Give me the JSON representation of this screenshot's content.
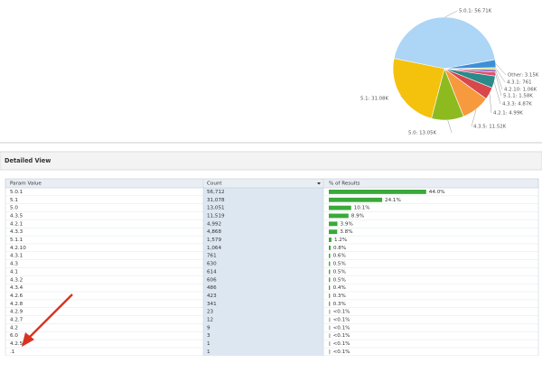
{
  "chart_data": {
    "type": "pie",
    "labels": [
      "5.0.1: 56.71K",
      "5.1: 31.08K",
      "5.0: 13.05K",
      "4.3.5: 11.52K",
      "4.2.1: 4.99K",
      "4.3.3: 4.87K",
      "5.1.1: 1.58K",
      "4.2.10: 1.06K",
      "4.3.1: 761",
      "Other: 3.15K"
    ],
    "values": [
      56712,
      31078,
      13051,
      11519,
      4992,
      4868,
      1579,
      1064,
      761,
      3149
    ],
    "colors": [
      "#acd5f6",
      "#f4c20d",
      "#8dbb1f",
      "#f79a3e",
      "#d8474b",
      "#2b8a8a",
      "#e4506f",
      "#8d6cbf",
      "#c5d46a",
      "#3d8fd8"
    ]
  },
  "section_title": "Detailed View",
  "table": {
    "columns": [
      "Param Value",
      "Count",
      "% of Results"
    ],
    "rows": [
      {
        "param": "5.0.1",
        "count": "56,712",
        "percent": {
          "value": 44.0,
          "label": "44.0%"
        }
      },
      {
        "param": "5.1",
        "count": "31,078",
        "percent": {
          "value": 24.1,
          "label": "24.1%"
        }
      },
      {
        "param": "5.0",
        "count": "13,051",
        "percent": {
          "value": 10.1,
          "label": "10.1%"
        }
      },
      {
        "param": "4.3.5",
        "count": "11,519",
        "percent": {
          "value": 8.9,
          "label": "8.9%"
        }
      },
      {
        "param": "4.2.1",
        "count": "4,992",
        "percent": {
          "value": 3.9,
          "label": "3.9%"
        }
      },
      {
        "param": "4.3.3",
        "count": "4,868",
        "percent": {
          "value": 3.8,
          "label": "3.8%"
        }
      },
      {
        "param": "5.1.1",
        "count": "1,579",
        "percent": {
          "value": 1.2,
          "label": "1.2%"
        }
      },
      {
        "param": "4.2.10",
        "count": "1,064",
        "percent": {
          "value": 0.8,
          "label": "0.8%"
        }
      },
      {
        "param": "4.3.1",
        "count": "761",
        "percent": {
          "value": 0.6,
          "label": "0.6%"
        }
      },
      {
        "param": "4.3",
        "count": "630",
        "percent": {
          "value": 0.5,
          "label": "0.5%"
        }
      },
      {
        "param": "4.1",
        "count": "614",
        "percent": {
          "value": 0.5,
          "label": "0.5%"
        }
      },
      {
        "param": "4.3.2",
        "count": "606",
        "percent": {
          "value": 0.5,
          "label": "0.5%"
        }
      },
      {
        "param": "4.3.4",
        "count": "486",
        "percent": {
          "value": 0.4,
          "label": "0.4%"
        }
      },
      {
        "param": "4.2.6",
        "count": "423",
        "percent": {
          "value": 0.3,
          "label": "0.3%"
        }
      },
      {
        "param": "4.2.8",
        "count": "341",
        "percent": {
          "value": 0.3,
          "label": "0.3%"
        }
      },
      {
        "param": "4.2.9",
        "count": "23",
        "percent": {
          "value": 0.02,
          "label": "<0.1%"
        }
      },
      {
        "param": "4.2.7",
        "count": "12",
        "percent": {
          "value": 0.01,
          "label": "<0.1%"
        }
      },
      {
        "param": "4.2",
        "count": "9",
        "percent": {
          "value": 0.007,
          "label": "<0.1%"
        }
      },
      {
        "param": "6.0",
        "count": "3",
        "percent": {
          "value": 0.002,
          "label": "<0.1%"
        }
      },
      {
        "param": "4.2.5",
        "count": "1",
        "percent": {
          "value": 0.001,
          "label": "<0.1%"
        }
      },
      {
        "param": ".1",
        "count": "1",
        "percent": {
          "value": 0.001,
          "label": "<0.1%"
        }
      }
    ]
  }
}
